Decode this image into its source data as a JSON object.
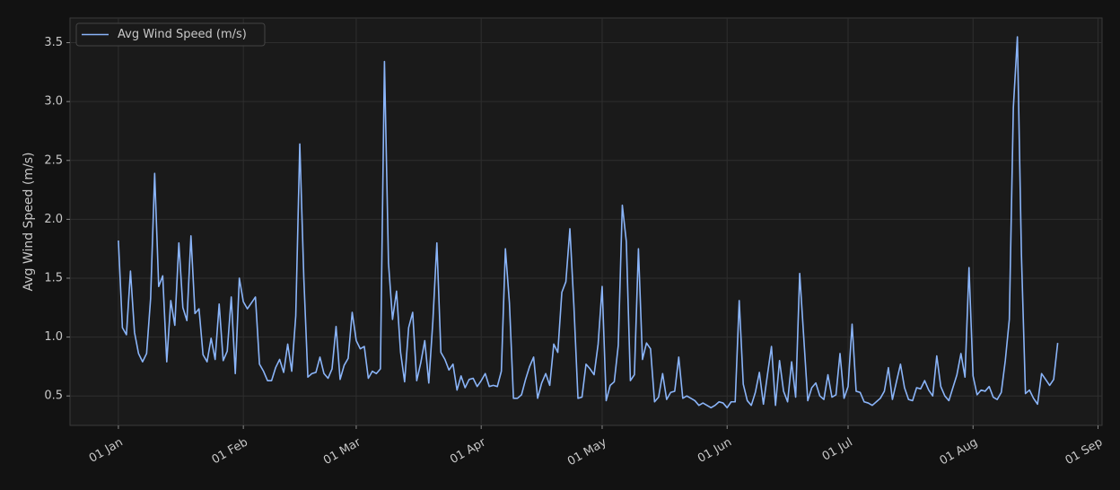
{
  "chart_data": {
    "type": "line",
    "ylabel": "Avg Wind Speed (m/s)",
    "x": [
      "01 Jan",
      "02 Jan",
      "03 Jan",
      "04 Jan",
      "05 Jan",
      "06 Jan",
      "07 Jan",
      "08 Jan",
      "09 Jan",
      "10 Jan",
      "11 Jan",
      "12 Jan",
      "13 Jan",
      "14 Jan",
      "15 Jan",
      "16 Jan",
      "17 Jan",
      "18 Jan",
      "19 Jan",
      "20 Jan",
      "21 Jan",
      "22 Jan",
      "23 Jan",
      "24 Jan",
      "25 Jan",
      "26 Jan",
      "27 Jan",
      "28 Jan",
      "29 Jan",
      "30 Jan",
      "31 Jan",
      "01 Feb",
      "02 Feb",
      "03 Feb",
      "04 Feb",
      "05 Feb",
      "06 Feb",
      "07 Feb",
      "08 Feb",
      "09 Feb",
      "10 Feb",
      "11 Feb",
      "12 Feb",
      "13 Feb",
      "14 Feb",
      "15 Feb",
      "16 Feb",
      "17 Feb",
      "18 Feb",
      "19 Feb",
      "20 Feb",
      "21 Feb",
      "22 Feb",
      "23 Feb",
      "24 Feb",
      "25 Feb",
      "26 Feb",
      "27 Feb",
      "28 Feb",
      "01 Mar",
      "02 Mar",
      "03 Mar",
      "04 Mar",
      "05 Mar",
      "06 Mar",
      "07 Mar",
      "08 Mar",
      "09 Mar",
      "10 Mar",
      "11 Mar",
      "12 Mar",
      "13 Mar",
      "14 Mar",
      "15 Mar",
      "16 Mar",
      "17 Mar",
      "18 Mar",
      "19 Mar",
      "20 Mar",
      "21 Mar",
      "22 Mar",
      "23 Mar",
      "24 Mar",
      "25 Mar",
      "26 Mar",
      "27 Mar",
      "28 Mar",
      "29 Mar",
      "30 Mar",
      "31 Mar",
      "01 Apr",
      "02 Apr",
      "03 Apr",
      "04 Apr",
      "05 Apr",
      "06 Apr",
      "07 Apr",
      "08 Apr",
      "09 Apr",
      "10 Apr",
      "11 Apr",
      "12 Apr",
      "13 Apr",
      "14 Apr",
      "15 Apr",
      "16 Apr",
      "17 Apr",
      "18 Apr",
      "19 Apr",
      "20 Apr",
      "21 Apr",
      "22 Apr",
      "23 Apr",
      "24 Apr",
      "25 Apr",
      "26 Apr",
      "27 Apr",
      "28 Apr",
      "29 Apr",
      "30 Apr",
      "01 May",
      "02 May",
      "03 May",
      "04 May",
      "05 May",
      "06 May",
      "07 May",
      "08 May",
      "09 May",
      "10 May",
      "11 May",
      "12 May",
      "13 May",
      "14 May",
      "15 May",
      "16 May",
      "17 May",
      "18 May",
      "19 May",
      "20 May",
      "21 May",
      "22 May",
      "23 May",
      "24 May",
      "25 May",
      "26 May",
      "27 May",
      "28 May",
      "29 May",
      "30 May",
      "31 May",
      "01 Jun",
      "02 Jun",
      "03 Jun",
      "04 Jun",
      "05 Jun",
      "06 Jun",
      "07 Jun",
      "08 Jun",
      "09 Jun",
      "10 Jun",
      "11 Jun",
      "12 Jun",
      "13 Jun",
      "14 Jun",
      "15 Jun",
      "16 Jun",
      "17 Jun",
      "18 Jun",
      "19 Jun",
      "20 Jun",
      "21 Jun",
      "22 Jun",
      "23 Jun",
      "24 Jun",
      "25 Jun",
      "26 Jun",
      "27 Jun",
      "28 Jun",
      "29 Jun",
      "30 Jun",
      "01 Jul",
      "02 Jul",
      "03 Jul",
      "04 Jul",
      "05 Jul",
      "06 Jul",
      "07 Jul",
      "08 Jul",
      "09 Jul",
      "10 Jul",
      "11 Jul",
      "12 Jul",
      "13 Jul",
      "14 Jul",
      "15 Jul",
      "16 Jul",
      "17 Jul",
      "18 Jul",
      "19 Jul",
      "20 Jul",
      "21 Jul",
      "22 Jul",
      "23 Jul",
      "24 Jul",
      "25 Jul",
      "26 Jul",
      "27 Jul",
      "28 Jul",
      "29 Jul",
      "30 Jul",
      "31 Jul",
      "01 Aug",
      "02 Aug",
      "03 Aug",
      "04 Aug",
      "05 Aug",
      "06 Aug",
      "07 Aug",
      "08 Aug",
      "09 Aug",
      "10 Aug",
      "11 Aug",
      "12 Aug",
      "13 Aug",
      "14 Aug",
      "15 Aug",
      "16 Aug",
      "17 Aug",
      "18 Aug",
      "19 Aug",
      "20 Aug",
      "21 Aug",
      "22 Aug"
    ],
    "series": [
      {
        "name": "Avg Wind Speed (m/s)",
        "color": "#8ab4f8",
        "values": [
          1.82,
          1.08,
          1.02,
          1.56,
          1.04,
          0.86,
          0.79,
          0.86,
          1.33,
          2.39,
          1.43,
          1.52,
          0.79,
          1.31,
          1.1,
          1.8,
          1.25,
          1.14,
          1.86,
          1.2,
          1.24,
          0.85,
          0.79,
          0.99,
          0.81,
          1.28,
          0.8,
          0.88,
          1.34,
          0.69,
          1.5,
          1.3,
          1.24,
          1.29,
          1.34,
          0.77,
          0.71,
          0.63,
          0.63,
          0.74,
          0.81,
          0.7,
          0.94,
          0.71,
          1.18,
          2.64,
          1.5,
          0.66,
          0.69,
          0.7,
          0.83,
          0.69,
          0.65,
          0.73,
          1.09,
          0.64,
          0.76,
          0.82,
          1.21,
          0.97,
          0.9,
          0.92,
          0.65,
          0.71,
          0.69,
          0.73,
          3.34,
          1.63,
          1.15,
          1.39,
          0.87,
          0.62,
          1.08,
          1.21,
          0.63,
          0.78,
          0.97,
          0.61,
          1.13,
          1.8,
          0.87,
          0.81,
          0.72,
          0.77,
          0.55,
          0.67,
          0.57,
          0.64,
          0.65,
          0.58,
          0.63,
          0.69,
          0.58,
          0.59,
          0.58,
          0.71,
          1.75,
          1.29,
          0.48,
          0.48,
          0.51,
          0.64,
          0.75,
          0.83,
          0.48,
          0.61,
          0.69,
          0.59,
          0.94,
          0.87,
          1.38,
          1.47,
          1.92,
          1.26,
          0.48,
          0.49,
          0.77,
          0.73,
          0.68,
          0.94,
          1.43,
          0.46,
          0.59,
          0.62,
          0.93,
          2.12,
          1.81,
          0.63,
          0.68,
          1.75,
          0.81,
          0.95,
          0.9,
          0.45,
          0.49,
          0.69,
          0.47,
          0.53,
          0.54,
          0.83,
          0.48,
          0.5,
          0.48,
          0.46,
          0.42,
          0.44,
          0.42,
          0.4,
          0.42,
          0.45,
          0.44,
          0.4,
          0.45,
          0.45,
          1.31,
          0.6,
          0.46,
          0.42,
          0.53,
          0.7,
          0.43,
          0.68,
          0.92,
          0.42,
          0.8,
          0.54,
          0.45,
          0.79,
          0.49,
          1.54,
          1.0,
          0.46,
          0.57,
          0.61,
          0.5,
          0.47,
          0.68,
          0.49,
          0.51,
          0.86,
          0.48,
          0.58,
          1.11,
          0.54,
          0.53,
          0.45,
          0.44,
          0.42,
          0.45,
          0.48,
          0.54,
          0.74,
          0.47,
          0.62,
          0.77,
          0.57,
          0.47,
          0.46,
          0.57,
          0.56,
          0.63,
          0.55,
          0.5,
          0.84,
          0.58,
          0.5,
          0.46,
          0.57,
          0.68,
          0.86,
          0.66,
          1.59,
          0.67,
          0.51,
          0.55,
          0.54,
          0.58,
          0.49,
          0.47,
          0.53,
          0.8,
          1.15,
          2.95,
          3.55,
          1.7,
          0.52,
          0.55,
          0.48,
          0.43,
          0.69,
          0.64,
          0.59,
          0.64,
          0.95
        ]
      }
    ],
    "xlim": [
      "20 Dec",
      "02 Sep"
    ],
    "xticks": [
      "01 Jan",
      "01 Feb",
      "01 Mar",
      "01 Apr",
      "01 May",
      "01 Jun",
      "01 Jul",
      "01 Aug",
      "01 Sep"
    ],
    "ylim": [
      0.25,
      3.71
    ],
    "yticks": [
      0.5,
      {
        "value": 1,
        "label": "1.0"
      },
      1.5,
      {
        "value": 2,
        "label": "2.0"
      },
      2.5,
      {
        "value": 3,
        "label": "3.0"
      },
      3.5
    ],
    "grid": true,
    "legend": "upper left"
  }
}
